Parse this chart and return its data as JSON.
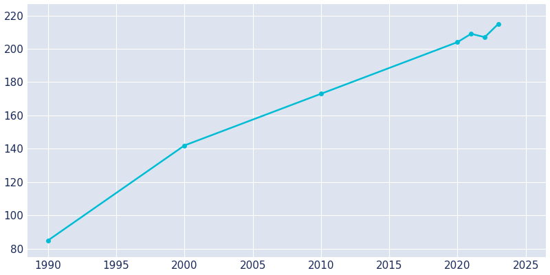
{
  "years": [
    1990,
    2000,
    2010,
    2020,
    2021,
    2022,
    2023
  ],
  "population": [
    85,
    142,
    173,
    204,
    209,
    207,
    215
  ],
  "line_color": "#00BCD4",
  "marker": "o",
  "marker_size": 4,
  "line_width": 1.8,
  "axes_background_color": "#dde4ef",
  "figure_background_color": "#ffffff",
  "grid_color": "#ffffff",
  "xlim": [
    1988.5,
    2026.5
  ],
  "ylim": [
    75,
    227
  ],
  "xticks": [
    1990,
    1995,
    2000,
    2005,
    2010,
    2015,
    2020,
    2025
  ],
  "yticks": [
    80,
    100,
    120,
    140,
    160,
    180,
    200,
    220
  ],
  "tick_color": "#1a2a5a",
  "tick_labelsize": 11,
  "spine_visible": false
}
